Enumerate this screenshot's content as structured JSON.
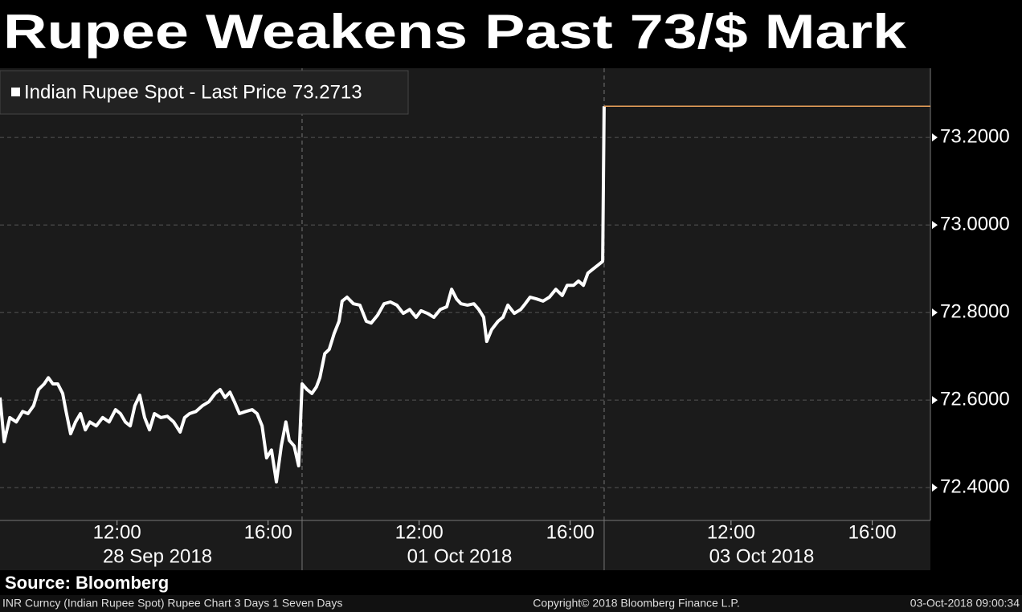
{
  "chart_data": {
    "type": "line",
    "title": "Rupee Weakens Past 73/$ Mark",
    "source": "Source: Bloomberg",
    "footer": {
      "left": "INR Curncy (Indian Rupee Spot) Rupee Chart 3 Days 1 Seven Days",
      "center": "Copyright© 2018 Bloomberg Finance L.P.",
      "right": "03-Oct-2018 09:00:34"
    },
    "x": [
      0,
      0.11,
      0.26,
      0.43,
      0.6,
      0.74,
      0.89,
      1.02,
      1.17,
      1.28,
      1.4,
      1.53,
      1.66,
      1.74,
      1.87,
      2,
      2.13,
      2.26,
      2.38,
      2.55,
      2.72,
      2.89,
      3.06,
      3.19,
      3.32,
      3.45,
      3.57,
      3.7,
      3.83,
      3.96,
      4.09,
      4.26,
      4.43,
      4.6,
      4.77,
      4.89,
      5.02,
      5.19,
      5.36,
      5.53,
      5.7,
      5.83,
      5.96,
      6.09,
      6.21,
      6.34,
      6.51,
      6.68,
      6.81,
      6.94,
      7.06,
      7.19,
      7.32,
      7.45,
      7.57,
      7.66,
      7.79,
      7.91,
      8,
      8.13,
      8.26,
      8.38,
      8.47,
      8.6,
      8.72,
      8.85,
      8.98,
      9.06,
      9.19,
      9.36,
      9.53,
      9.7,
      9.83,
      10,
      10.17,
      10.34,
      10.51,
      10.68,
      10.85,
      11.02,
      11.15,
      11.32,
      11.49,
      11.66,
      11.83,
      11.96,
      12.09,
      12.21,
      12.38,
      12.55,
      12.68,
      12.81,
      12.89,
      13.02,
      13.19,
      13.32,
      13.45,
      13.62,
      13.79,
      13.91,
      14.04,
      14.21,
      14.38,
      14.55,
      14.72,
      14.89,
      15.02,
      15.19,
      15.32,
      15.45,
      15.57,
      15.7,
      15.83,
      15.96,
      16
    ],
    "series": [
      {
        "name": "Indian Rupee Spot - Last Price",
        "color": "#ffffff",
        "values": [
          72.606,
          72.505,
          72.56,
          72.55,
          72.574,
          72.569,
          72.587,
          72.624,
          72.637,
          72.651,
          72.637,
          72.637,
          72.615,
          72.578,
          72.523,
          72.55,
          72.569,
          72.532,
          72.55,
          72.541,
          72.56,
          72.55,
          72.578,
          72.569,
          72.55,
          72.541,
          72.587,
          72.611,
          72.56,
          72.532,
          72.569,
          72.56,
          72.563,
          72.55,
          72.527,
          72.56,
          72.569,
          72.574,
          72.587,
          72.596,
          72.615,
          72.624,
          72.606,
          72.618,
          72.596,
          72.569,
          72.574,
          72.578,
          72.569,
          72.541,
          72.468,
          72.486,
          72.413,
          72.495,
          72.55,
          72.508,
          72.495,
          72.45,
          72.637,
          72.624,
          72.615,
          72.63,
          72.651,
          72.706,
          72.716,
          72.752,
          72.78,
          72.826,
          72.835,
          72.82,
          72.817,
          72.78,
          72.776,
          72.794,
          72.82,
          72.824,
          72.817,
          72.798,
          72.807,
          72.789,
          72.804,
          72.798,
          72.789,
          72.807,
          72.813,
          72.853,
          72.831,
          72.82,
          72.817,
          72.82,
          72.807,
          72.789,
          72.734,
          72.761,
          72.78,
          72.789,
          72.817,
          72.798,
          72.807,
          72.82,
          72.835,
          72.831,
          72.826,
          72.835,
          72.853,
          72.839,
          72.862,
          72.862,
          72.872,
          72.862,
          72.89,
          72.899,
          72.908,
          72.917,
          73.2713
        ]
      }
    ],
    "last_price": 73.2713,
    "last_price_color": "#e8a05a",
    "xlim": [
      0,
      24.64
    ],
    "xticks": [
      {
        "value": 3.1,
        "label": "12:00"
      },
      {
        "value": 7.1,
        "label": "16:00"
      },
      {
        "value": 11.1,
        "label": "12:00"
      },
      {
        "value": 15.1,
        "label": "16:00"
      },
      {
        "value": 19.36,
        "label": "12:00"
      },
      {
        "value": 23.1,
        "label": "16:00"
      }
    ],
    "day_groups": [
      {
        "start": 0,
        "label": "28 Sep 2018"
      },
      {
        "start": 8,
        "label": "01 Oct 2018"
      },
      {
        "start": 16,
        "label": "03 Oct 2018"
      }
    ],
    "ylim": [
      72.325,
      73.358
    ],
    "yticks": [
      {
        "value": 72.4,
        "label": "72.4000"
      },
      {
        "value": 72.6,
        "label": "72.6000"
      },
      {
        "value": 72.8,
        "label": "72.8000"
      },
      {
        "value": 73.0,
        "label": "73.0000"
      },
      {
        "value": 73.2,
        "label": "73.2000"
      }
    ],
    "grid": true,
    "axis_side": "right"
  }
}
